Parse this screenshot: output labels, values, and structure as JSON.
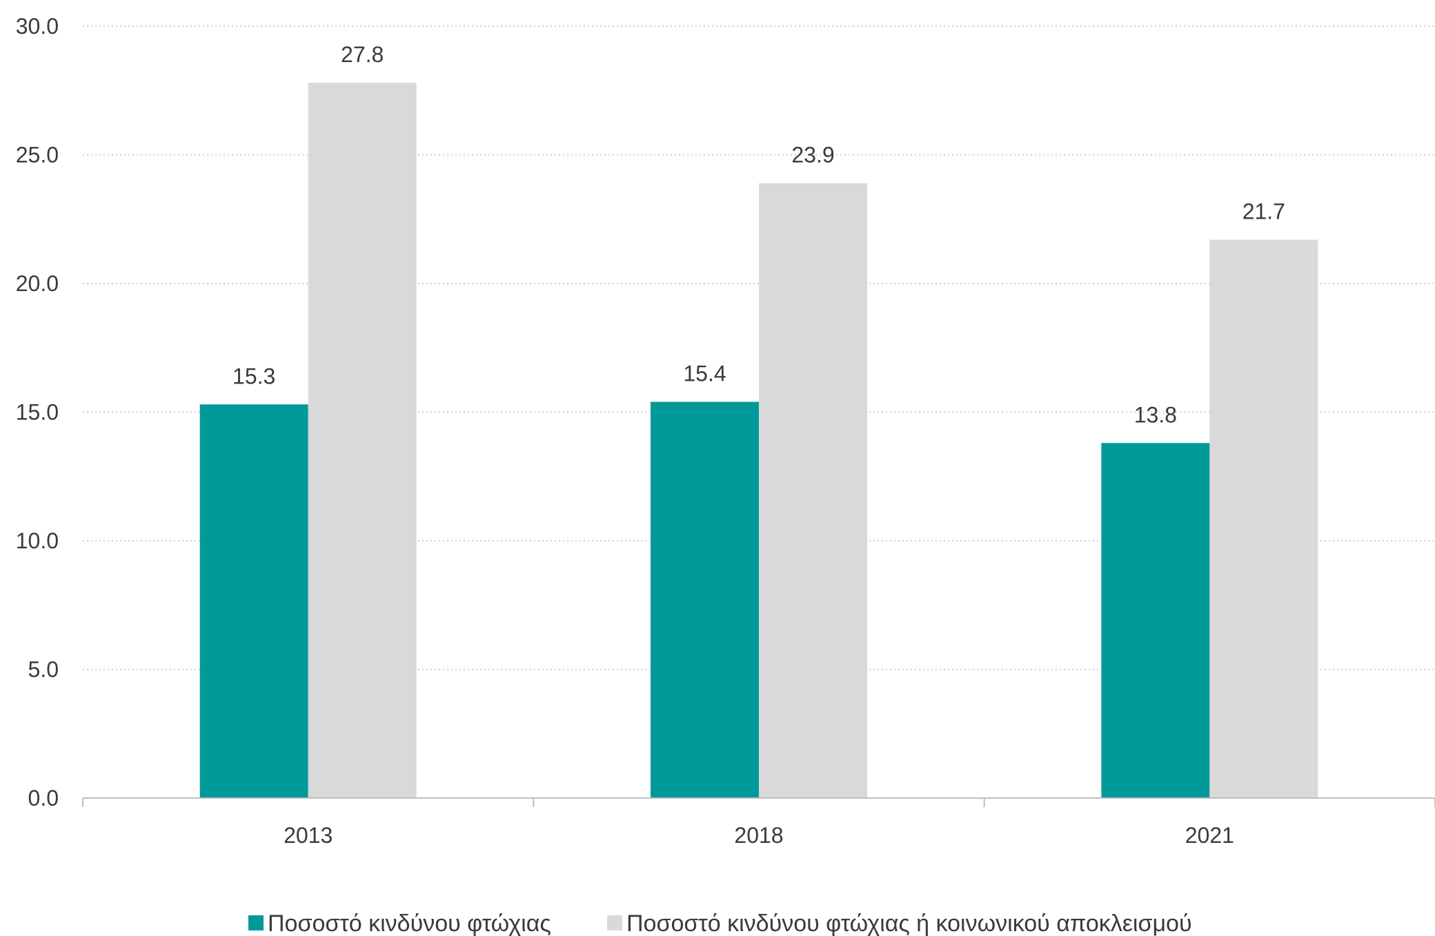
{
  "chart_data": {
    "type": "bar",
    "categories": [
      "2013",
      "2018",
      "2021"
    ],
    "series": [
      {
        "name": "Ποσοστό κινδύνου φτώχιας",
        "values": [
          15.3,
          15.4,
          13.8
        ],
        "color": "#009999"
      },
      {
        "name": "Ποσοστό κινδύνου φτώχιας ή κοινωνικού αποκλεισμού",
        "values": [
          27.8,
          23.9,
          21.7
        ],
        "color": "#d9d9d9"
      }
    ],
    "ylim": [
      0,
      30
    ],
    "yticks": [
      "0.0",
      "5.0",
      "10.0",
      "15.0",
      "20.0",
      "25.0",
      "30.0"
    ],
    "title": "",
    "xlabel": "",
    "ylabel": "",
    "grid": "horizontal dotted",
    "legend_position": "bottom"
  }
}
